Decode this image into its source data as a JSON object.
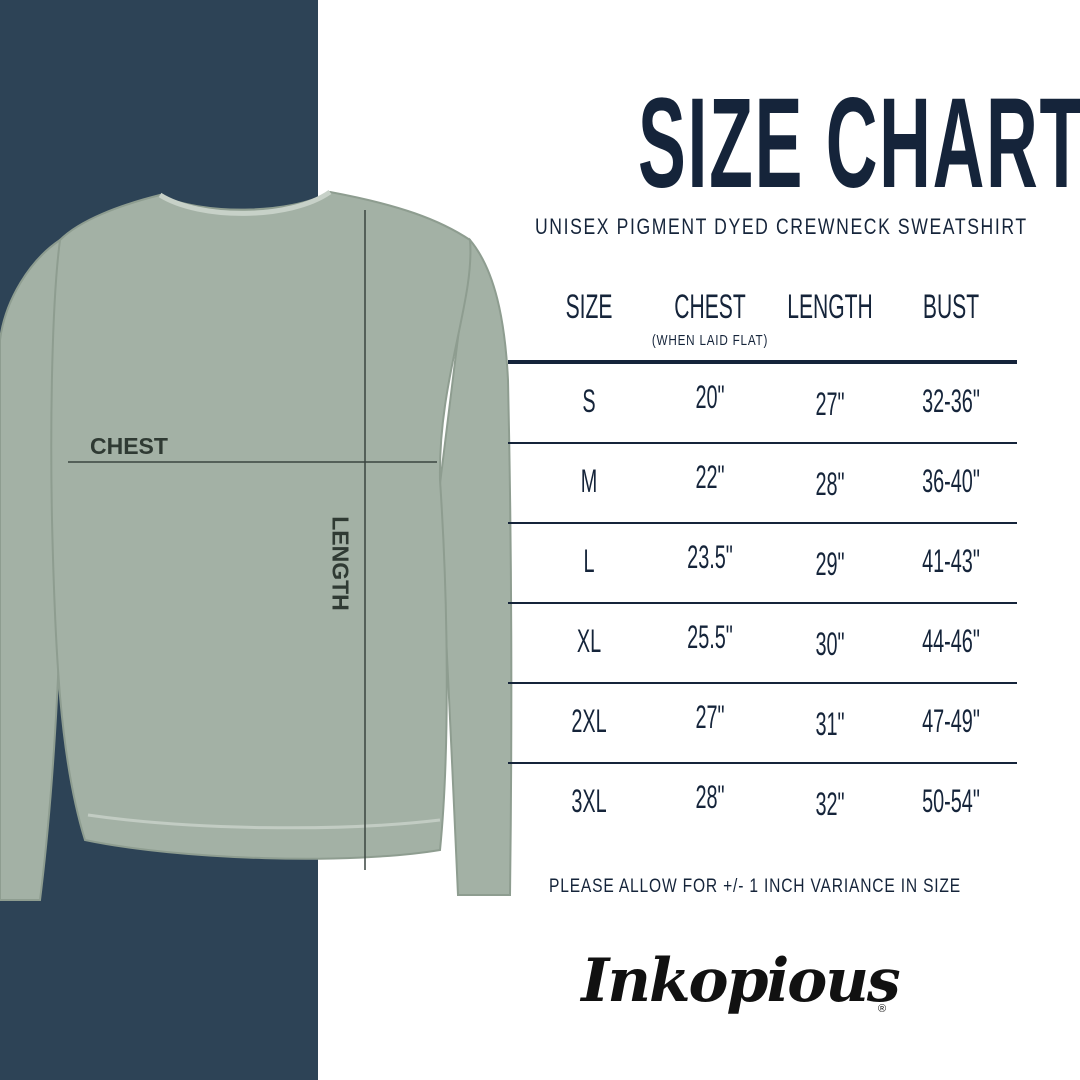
{
  "title": "SIZE CHART",
  "subtitle": "UNISEX PIGMENT DYED CREWNECK SWEATSHIRT",
  "colors": {
    "panel": "#2d4356",
    "text": "#15243a",
    "garment": "#a3b1a5"
  },
  "diagram": {
    "chest_label": "CHEST",
    "length_label": "LENGTH"
  },
  "table": {
    "headers": [
      "SIZE",
      "CHEST",
      "LENGTH",
      "BUST"
    ],
    "chest_note": "(WHEN LAID FLAT)",
    "rows": [
      [
        "S",
        "20\"",
        "27\"",
        "32-36\""
      ],
      [
        "M",
        "22\"",
        "28\"",
        "36-40\""
      ],
      [
        "L",
        "23.5\"",
        "29\"",
        "41-43\""
      ],
      [
        "XL",
        "25.5\"",
        "30\"",
        "44-46\""
      ],
      [
        "2XL",
        "27\"",
        "31\"",
        "47-49\""
      ],
      [
        "3XL",
        "28\"",
        "32\"",
        "50-54\""
      ]
    ]
  },
  "note": "PLEASE ALLOW FOR +/- 1 INCH VARIANCE IN SIZE",
  "brand": "Inkopious"
}
